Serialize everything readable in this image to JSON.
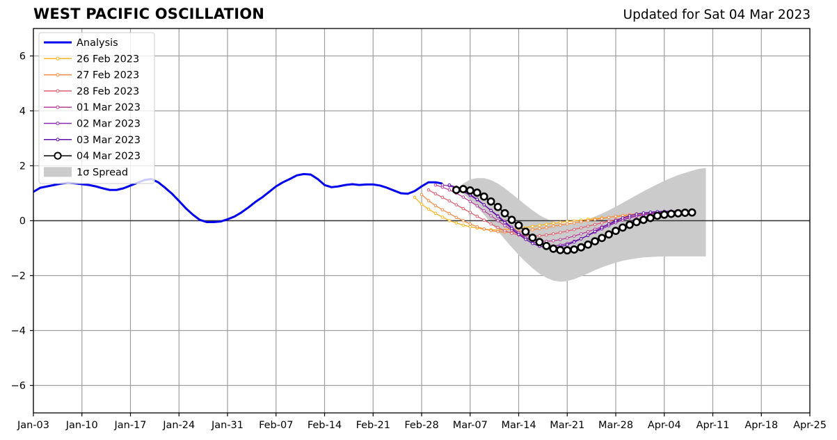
{
  "title": "WEST PACIFIC OSCILLATION",
  "subtitle": "Updated for Sat 04 Mar 2023",
  "chart_data": {
    "type": "line",
    "title": "WEST PACIFIC OSCILLATION",
    "subtitle": "Updated for Sat 04 Mar 2023",
    "ylim": [
      -7,
      7
    ],
    "yticks": [
      6,
      4,
      2,
      0,
      -2,
      -4,
      -6
    ],
    "ytick_labels": [
      "6",
      "4",
      "2",
      "0",
      "−2",
      "−4",
      "−6"
    ],
    "xlim": [
      "2023-01-03",
      "2023-04-25"
    ],
    "xticks": [
      "2023-01-03",
      "2023-01-10",
      "2023-01-17",
      "2023-01-24",
      "2023-01-31",
      "2023-02-07",
      "2023-02-14",
      "2023-02-21",
      "2023-02-28",
      "2023-03-07",
      "2023-03-14",
      "2023-03-21",
      "2023-03-28",
      "2023-04-04",
      "2023-04-11",
      "2023-04-18",
      "2023-04-25"
    ],
    "xtick_labels": [
      "Jan-03",
      "Jan-10",
      "Jan-17",
      "Jan-24",
      "Jan-31",
      "Feb-07",
      "Feb-14",
      "Feb-21",
      "Feb-28",
      "Mar-07",
      "Mar-14",
      "Mar-21",
      "Mar-28",
      "Apr-04",
      "Apr-11",
      "Apr-18",
      "Apr-25"
    ],
    "grid": true,
    "legend_position": "top-left",
    "zero_line": true,
    "analysis": {
      "name": "Analysis",
      "color": "#0000ee",
      "start": "2023-01-03",
      "values": [
        1.05,
        1.2,
        1.25,
        1.3,
        1.35,
        1.38,
        1.36,
        1.33,
        1.3,
        1.25,
        1.18,
        1.12,
        1.12,
        1.18,
        1.28,
        1.38,
        1.48,
        1.52,
        1.4,
        1.2,
        0.98,
        0.72,
        0.45,
        0.22,
        0.03,
        -0.05,
        -0.05,
        -0.03,
        0.05,
        0.15,
        0.3,
        0.48,
        0.68,
        0.85,
        1.05,
        1.25,
        1.4,
        1.52,
        1.65,
        1.7,
        1.68,
        1.52,
        1.3,
        1.22,
        1.25,
        1.3,
        1.33,
        1.3,
        1.32,
        1.32,
        1.28,
        1.2,
        1.1,
        1.0,
        0.98,
        1.08,
        1.25,
        1.4,
        1.4,
        1.35
      ]
    },
    "forecasts": [
      {
        "name": "26 Feb 2023",
        "color": "#f9b31e",
        "start": "2023-02-27",
        "values": [
          0.85,
          0.6,
          0.42,
          0.27,
          0.13,
          0.0,
          -0.08,
          -0.16,
          -0.22,
          -0.27,
          -0.31,
          -0.33,
          -0.34,
          -0.33,
          -0.31,
          -0.28,
          -0.25,
          -0.21,
          -0.17,
          -0.13,
          -0.09,
          -0.06,
          -0.03,
          -0.01,
          0.02,
          0.05,
          0.07,
          0.1,
          0.12,
          0.15,
          0.17,
          0.2,
          0.22,
          0.25,
          0.27,
          0.3,
          0.32,
          0.33,
          0.35,
          0.36
        ]
      },
      {
        "name": "27 Feb 2023",
        "color": "#f38a45",
        "start": "2023-02-28",
        "values": [
          0.95,
          0.73,
          0.55,
          0.4,
          0.26,
          0.12,
          0.0,
          -0.12,
          -0.22,
          -0.3,
          -0.36,
          -0.4,
          -0.42,
          -0.42,
          -0.4,
          -0.37,
          -0.33,
          -0.29,
          -0.25,
          -0.2,
          -0.16,
          -0.12,
          -0.08,
          -0.04,
          0.0,
          0.04,
          0.08,
          0.12,
          0.16,
          0.19,
          0.22,
          0.25,
          0.27,
          0.29,
          0.3,
          0.32,
          0.33,
          0.34,
          0.35,
          0.35
        ]
      },
      {
        "name": "28 Feb 2023",
        "color": "#df5e6e",
        "start": "2023-03-01",
        "values": [
          1.12,
          0.98,
          0.85,
          0.72,
          0.58,
          0.44,
          0.3,
          0.16,
          0.02,
          -0.12,
          -0.25,
          -0.37,
          -0.46,
          -0.52,
          -0.55,
          -0.56,
          -0.55,
          -0.52,
          -0.48,
          -0.43,
          -0.38,
          -0.32,
          -0.26,
          -0.2,
          -0.14,
          -0.08,
          -0.02,
          0.04,
          0.09,
          0.14,
          0.18,
          0.22,
          0.25,
          0.27,
          0.29,
          0.31,
          0.33,
          0.34,
          0.35
        ]
      },
      {
        "name": "01 Mar 2023",
        "color": "#b8409a",
        "start": "2023-03-02",
        "values": [
          1.3,
          1.22,
          1.12,
          1.0,
          0.86,
          0.7,
          0.54,
          0.36,
          0.18,
          0.0,
          -0.18,
          -0.35,
          -0.5,
          -0.62,
          -0.7,
          -0.74,
          -0.75,
          -0.73,
          -0.69,
          -0.63,
          -0.56,
          -0.48,
          -0.4,
          -0.31,
          -0.22,
          -0.13,
          -0.05,
          0.03,
          0.1,
          0.16,
          0.21,
          0.25,
          0.28,
          0.3,
          0.32,
          0.33,
          0.34,
          0.35
        ]
      },
      {
        "name": "02 Mar 2023",
        "color": "#8a27b0",
        "start": "2023-03-03",
        "values": [
          1.3,
          1.27,
          1.18,
          1.06,
          0.92,
          0.76,
          0.58,
          0.38,
          0.18,
          -0.03,
          -0.24,
          -0.44,
          -0.62,
          -0.76,
          -0.86,
          -0.91,
          -0.92,
          -0.89,
          -0.83,
          -0.75,
          -0.65,
          -0.54,
          -0.42,
          -0.3,
          -0.18,
          -0.07,
          0.03,
          0.11,
          0.18,
          0.23,
          0.27,
          0.3,
          0.32,
          0.33,
          0.34,
          0.35,
          0.35
        ]
      },
      {
        "name": "03 Mar 2023",
        "color": "#5c0ea8",
        "start": "2023-03-04",
        "values": [
          1.3,
          1.22,
          1.1,
          0.95,
          0.78,
          0.58,
          0.37,
          0.15,
          -0.07,
          -0.29,
          -0.5,
          -0.68,
          -0.83,
          -0.93,
          -0.98,
          -0.99,
          -0.95,
          -0.88,
          -0.78,
          -0.66,
          -0.53,
          -0.39,
          -0.25,
          -0.12,
          0.0,
          0.1,
          0.18,
          0.24,
          0.28,
          0.31,
          0.33,
          0.34,
          0.35,
          0.35,
          0.36,
          0.36
        ]
      },
      {
        "name": "04 Mar 2023",
        "color": "#000000",
        "start": "2023-03-05",
        "values": [
          1.12,
          1.15,
          1.1,
          1.02,
          0.88,
          0.7,
          0.5,
          0.27,
          0.03,
          -0.17,
          -0.4,
          -0.62,
          -0.78,
          -0.92,
          -1.02,
          -1.07,
          -1.08,
          -1.05,
          -0.97,
          -0.87,
          -0.75,
          -0.63,
          -0.5,
          -0.37,
          -0.25,
          -0.15,
          -0.05,
          0.03,
          0.1,
          0.18,
          0.22,
          0.25,
          0.27,
          0.29,
          0.3
        ]
      }
    ],
    "spread": {
      "name": "1σ Spread",
      "color": "#cbcbcb",
      "start": "2023-03-05",
      "upper": [
        1.12,
        1.35,
        1.5,
        1.55,
        1.55,
        1.48,
        1.35,
        1.18,
        0.98,
        0.78,
        0.57,
        0.38,
        0.2,
        0.07,
        -0.03,
        -0.09,
        -0.1,
        -0.08,
        -0.03,
        0.05,
        0.15,
        0.26,
        0.38,
        0.51,
        0.65,
        0.79,
        0.93,
        1.07,
        1.2,
        1.33,
        1.45,
        1.56,
        1.66,
        1.74,
        1.82,
        1.89,
        1.92
      ],
      "lower": [
        1.12,
        0.98,
        0.75,
        0.5,
        0.22,
        -0.08,
        -0.38,
        -0.68,
        -0.97,
        -1.25,
        -1.5,
        -1.73,
        -1.93,
        -2.08,
        -2.18,
        -2.22,
        -2.2,
        -2.13,
        -2.03,
        -1.92,
        -1.8,
        -1.7,
        -1.61,
        -1.53,
        -1.46,
        -1.41,
        -1.37,
        -1.34,
        -1.32,
        -1.31,
        -1.3,
        -1.3,
        -1.3,
        -1.3,
        -1.3,
        -1.3,
        -1.3
      ]
    },
    "legend": [
      "Analysis",
      "26 Feb 2023",
      "27 Feb 2023",
      "28 Feb 2023",
      "01 Mar 2023",
      "02 Mar 2023",
      "03 Mar 2023",
      "04 Mar 2023",
      "1σ Spread"
    ]
  }
}
